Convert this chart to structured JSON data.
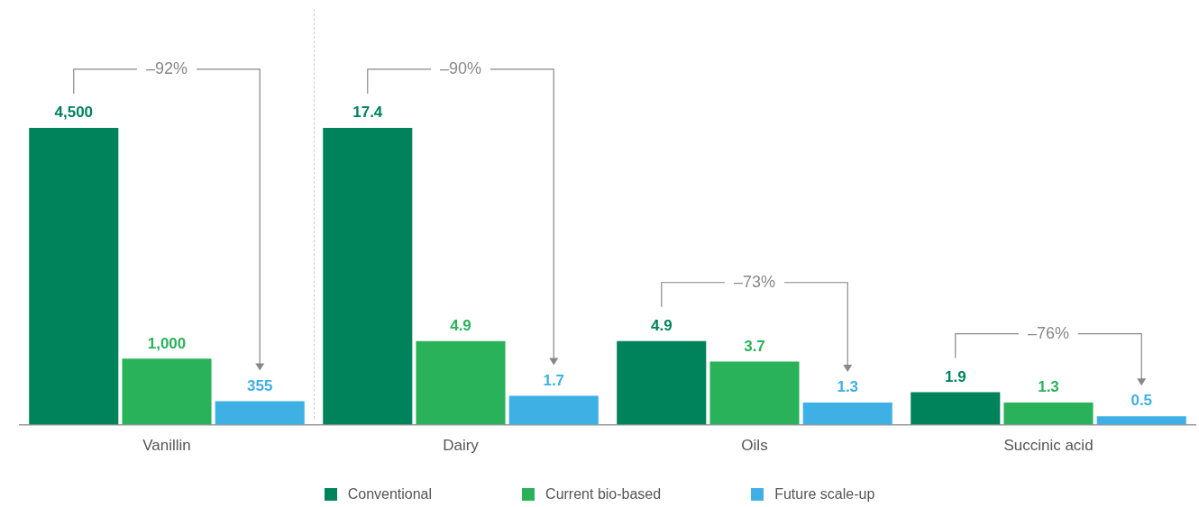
{
  "chart_data": {
    "type": "bar",
    "categories": [
      "Vanillin",
      "Dairy",
      "Oils",
      "Succinic acid"
    ],
    "tick_labels": "x",
    "legend": "bottom",
    "series": [
      {
        "color": "#00835b",
        "axis": "y2",
        "values": [
          4500,
          null,
          null,
          null
        ],
        "value_labels": [
          "4,500",
          null,
          null,
          null
        ]
      },
      {
        "color": "#29b25a",
        "axis": "y2",
        "values": [
          1000,
          null,
          null,
          null
        ],
        "value_labels": [
          "1,000",
          null,
          null,
          null
        ]
      },
      {
        "color": "#3eb0e4",
        "axis": "y2",
        "values": [
          355,
          null,
          null,
          null
        ],
        "value_labels": [
          "355",
          null,
          null,
          null
        ]
      },
      {
        "name": "Conventional",
        "color": "#00835b",
        "values": [
          null,
          17.4,
          4.9,
          1.9
        ],
        "value_labels": [
          null,
          "17.4",
          "4.9",
          "1.9"
        ]
      },
      {
        "name": "Current bio-based",
        "color": "#29b25a",
        "values": [
          null,
          4.9,
          3.7,
          1.3
        ],
        "value_labels": [
          null,
          "4.9",
          "3.7",
          "1.3"
        ]
      },
      {
        "name": "Future scale-up",
        "color": "#3eb0e4",
        "values": [
          null,
          1.7,
          1.3,
          0.5
        ],
        "value_labels": [
          null,
          "1.7",
          "1.3",
          "0.5"
        ]
      }
    ],
    "annotations": [
      "–92%",
      "–90%",
      "–73%",
      "–76%"
    ]
  }
}
